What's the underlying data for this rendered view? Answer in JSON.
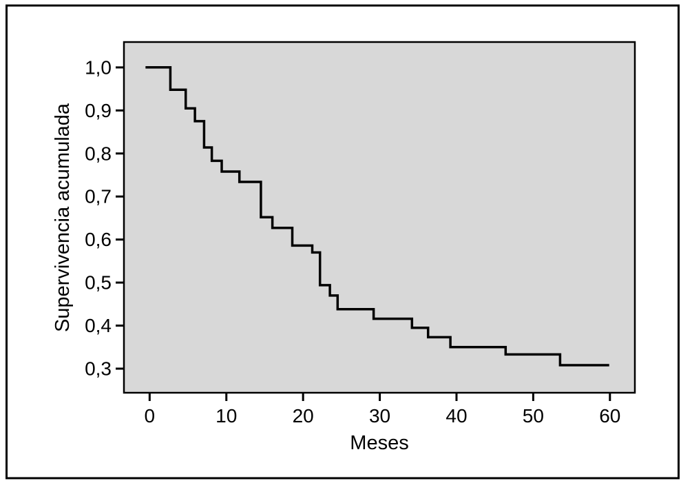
{
  "figure": {
    "background": "#ffffff",
    "frame_color": "#000000"
  },
  "chart_data": {
    "type": "line",
    "subtype": "kaplan-meier-step",
    "title": "",
    "xlabel": "Meses",
    "ylabel": "Supervivencia acumulada",
    "plot_bg": "#d8d8d8",
    "line_color": "#000000",
    "axis_color": "#000000",
    "grid": false,
    "legend": null,
    "xlim": [
      -3.35,
      63.25
    ],
    "ylim": [
      0.244,
      1.059
    ],
    "x_ticks": {
      "values": [
        0,
        10,
        20,
        30,
        40,
        50,
        60
      ],
      "labels": [
        "0",
        "10",
        "20",
        "30",
        "40",
        "50",
        "60"
      ]
    },
    "y_ticks": {
      "values": [
        1.0,
        0.9,
        0.8,
        0.7,
        0.6,
        0.5,
        0.4,
        0.3
      ],
      "labels": [
        "1,0",
        "0,9",
        "0,8",
        "0,7",
        "0,6",
        "0,5",
        "0,4",
        "0,3"
      ]
    },
    "series": [
      {
        "name": "Supervivencia acumulada",
        "steps": [
          {
            "t": 0.0,
            "s": 1.0
          },
          {
            "t": 2.7,
            "s": 0.948
          },
          {
            "t": 4.7,
            "s": 0.905
          },
          {
            "t": 5.9,
            "s": 0.875
          },
          {
            "t": 7.1,
            "s": 0.814
          },
          {
            "t": 8.1,
            "s": 0.783
          },
          {
            "t": 9.4,
            "s": 0.758
          },
          {
            "t": 11.7,
            "s": 0.734
          },
          {
            "t": 14.5,
            "s": 0.652
          },
          {
            "t": 16.0,
            "s": 0.627
          },
          {
            "t": 18.6,
            "s": 0.586
          },
          {
            "t": 21.2,
            "s": 0.57
          },
          {
            "t": 22.2,
            "s": 0.494
          },
          {
            "t": 23.5,
            "s": 0.47
          },
          {
            "t": 24.5,
            "s": 0.438
          },
          {
            "t": 29.2,
            "s": 0.416
          },
          {
            "t": 34.2,
            "s": 0.395
          },
          {
            "t": 36.3,
            "s": 0.373
          },
          {
            "t": 39.2,
            "s": 0.35
          },
          {
            "t": 46.4,
            "s": 0.333
          },
          {
            "t": 53.5,
            "s": 0.308
          }
        ],
        "end_t": 59.9
      }
    ]
  }
}
